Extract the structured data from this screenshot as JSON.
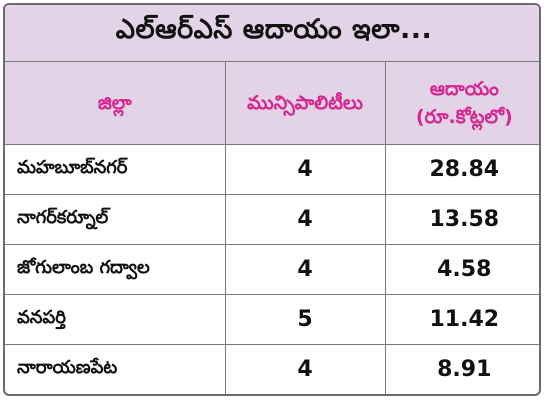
{
  "title": "ఎల్ఆర్ఎస్ ఆదాయం ఇలా...",
  "columns": {
    "district": "జిల్లా",
    "municipalities": "మున్సిపాలిటీలు",
    "revenue_line1": "ఆదాయం",
    "revenue_line2": "(రూ.కోట్లలో)"
  },
  "rows": [
    {
      "district": "మహబూబ్‌నగర్",
      "municipalities": "4",
      "revenue": "28.84"
    },
    {
      "district": "నాగర్‌కర్నూల్",
      "municipalities": "4",
      "revenue": "13.58"
    },
    {
      "district": "జోగులాంబ గద్వాల",
      "municipalities": "4",
      "revenue": "4.58"
    },
    {
      "district": "వనపర్తి",
      "municipalities": "5",
      "revenue": "11.42"
    },
    {
      "district": "నారాయణపేట",
      "municipalities": "4",
      "revenue": "8.91"
    }
  ],
  "colors": {
    "header_background": "#e3d3e6",
    "header_text": "#d6268f",
    "border": "#7a7a7a"
  }
}
